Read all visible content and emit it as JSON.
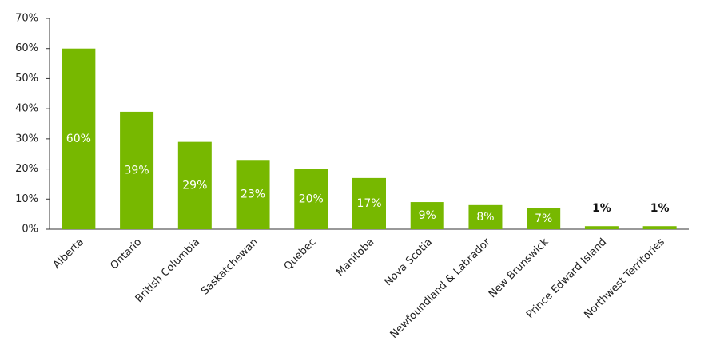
{
  "chart_data": {
    "type": "bar",
    "categories": [
      "Alberta",
      "Ontario",
      "British Columbia",
      "Saskatchewan",
      "Quebec",
      "Manitoba",
      "Nova Scotia",
      "Newfoundland & Labrador",
      "New Brunswick",
      "Prince Edward Island",
      "Northwest Territories"
    ],
    "values": [
      60,
      39,
      29,
      23,
      20,
      17,
      9,
      8,
      7,
      1,
      1
    ],
    "value_labels": [
      "60%",
      "39%",
      "29%",
      "23%",
      "20%",
      "17%",
      "9%",
      "8%",
      "7%",
      "1%",
      "1%"
    ],
    "color": "#77b800",
    "ylim": [
      0,
      70
    ],
    "yticks": [
      {
        "value": 0,
        "label": "0%"
      },
      {
        "value": 10,
        "label": "10%"
      },
      {
        "value": 20,
        "label": "20%"
      },
      {
        "value": 30,
        "label": "30%"
      },
      {
        "value": 40,
        "label": "40%"
      },
      {
        "value": 50,
        "label": "50%"
      },
      {
        "value": 60,
        "label": "60%"
      },
      {
        "value": 70,
        "label": "70%"
      }
    ],
    "grid": false
  }
}
